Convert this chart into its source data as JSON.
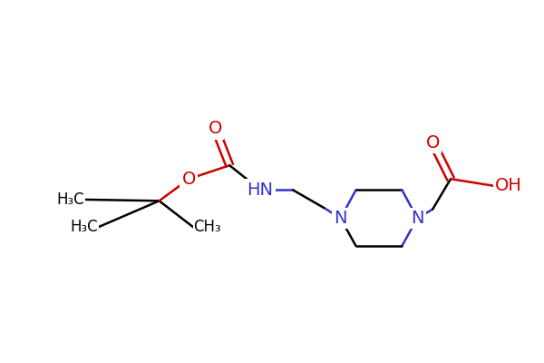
{
  "background_color": "#ffffff",
  "bond_color": "#000000",
  "nitrogen_color": "#3333cc",
  "oxygen_color": "#cc0000",
  "carbon_color": "#000000",
  "font_size_atoms": 14,
  "font_size_methyl": 12,
  "fig_width": 6.0,
  "fig_height": 4.0,
  "dpi": 100,
  "lw": 1.8,
  "xlim": [
    0.0,
    10.5
  ],
  "ylim": [
    1.5,
    6.5
  ]
}
